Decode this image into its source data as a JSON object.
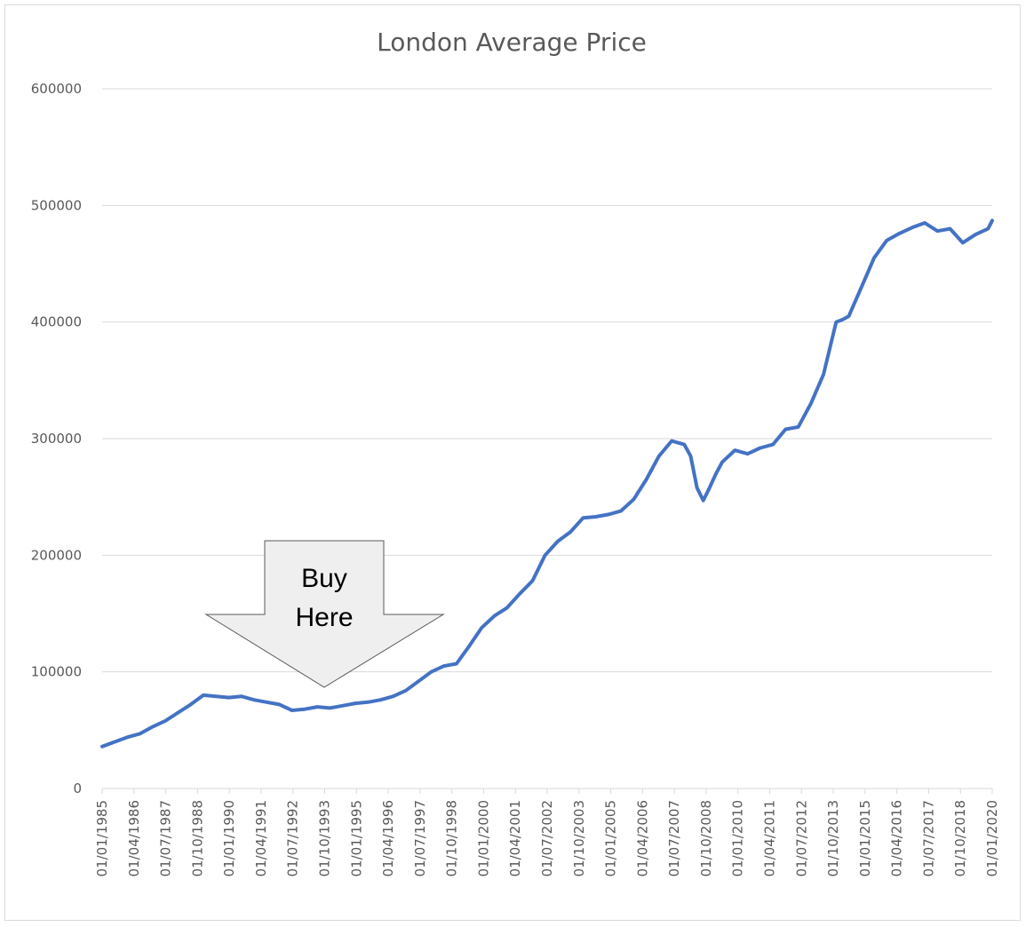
{
  "chart_data": {
    "type": "line",
    "title": "London Average Price",
    "xlabel": "",
    "ylabel": "",
    "ylim": [
      0,
      600000
    ],
    "yticks": [
      "0",
      "100000",
      "200000",
      "300000",
      "400000",
      "500000",
      "600000"
    ],
    "xticks": [
      "01/01/1985",
      "01/04/1986",
      "01/07/1987",
      "01/10/1988",
      "01/01/1990",
      "01/04/1991",
      "01/07/1992",
      "01/10/1993",
      "01/01/1995",
      "01/04/1996",
      "01/07/1997",
      "01/10/1998",
      "01/01/2000",
      "01/04/2001",
      "01/07/2002",
      "01/10/2003",
      "01/01/2005",
      "01/04/2006",
      "01/07/2007",
      "01/10/2008",
      "01/01/2010",
      "01/04/2011",
      "01/07/2012",
      "01/10/2013",
      "01/01/2015",
      "01/04/2016",
      "01/07/2017",
      "01/10/2018",
      "01/01/2020"
    ],
    "grid": true,
    "legend": "none",
    "line_color": "#4472c4",
    "series": [
      {
        "x": [
          "1985-01",
          "1985-07",
          "1986-01",
          "1986-07",
          "1987-01",
          "1987-07",
          "1988-01",
          "1988-07",
          "1989-01",
          "1989-07",
          "1990-01",
          "1990-07",
          "1991-01",
          "1991-07",
          "1992-01",
          "1992-07",
          "1993-01",
          "1993-07",
          "1994-01",
          "1994-07",
          "1995-01",
          "1995-07",
          "1996-01",
          "1996-07",
          "1997-01",
          "1997-07",
          "1998-01",
          "1998-07",
          "1999-01",
          "1999-07",
          "2000-01",
          "2000-07",
          "2001-01",
          "2001-07",
          "2002-01",
          "2002-07",
          "2003-01",
          "2003-07",
          "2004-01",
          "2004-07",
          "2005-01",
          "2005-07",
          "2006-01",
          "2006-07",
          "2007-01",
          "2007-07",
          "2008-01",
          "2008-04",
          "2008-07",
          "2008-10",
          "2009-01",
          "2009-04",
          "2009-07",
          "2010-01",
          "2010-07",
          "2011-01",
          "2011-07",
          "2012-01",
          "2012-07",
          "2013-01",
          "2013-07",
          "2014-01",
          "2014-04",
          "2014-07",
          "2015-01",
          "2015-07",
          "2016-01",
          "2016-07",
          "2017-01",
          "2017-07",
          "2018-01",
          "2018-07",
          "2019-01",
          "2019-07",
          "2020-01",
          "2020-03"
        ],
        "values": [
          36000,
          40000,
          44000,
          47000,
          53000,
          58000,
          65000,
          72000,
          80000,
          79000,
          78000,
          79000,
          76000,
          74000,
          72000,
          67000,
          68000,
          70000,
          69000,
          71000,
          73000,
          74000,
          76000,
          79000,
          84000,
          92000,
          100000,
          105000,
          107000,
          122000,
          138000,
          148000,
          155000,
          167000,
          178000,
          200000,
          212000,
          220000,
          232000,
          233000,
          235000,
          238000,
          248000,
          265000,
          285000,
          298000,
          295000,
          285000,
          258000,
          247000,
          258000,
          270000,
          280000,
          290000,
          287000,
          292000,
          295000,
          308000,
          310000,
          330000,
          355000,
          400000,
          402000,
          405000,
          430000,
          455000,
          470000,
          476000,
          481000,
          485000,
          478000,
          480000,
          468000,
          475000,
          480000,
          487000
        ]
      }
    ],
    "annotations": [
      {
        "text_line1": "Buy",
        "text_line2": "Here"
      }
    ]
  }
}
